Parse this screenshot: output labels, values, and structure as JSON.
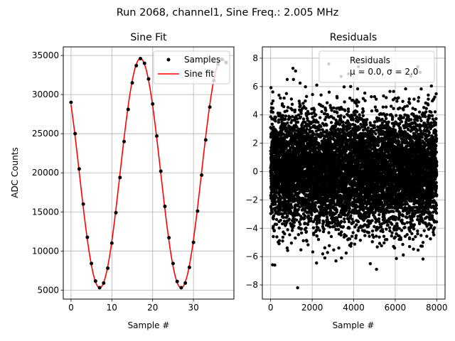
{
  "figure": {
    "title": "Run 2068, channel1, Sine Freq.: 2.005 MHz"
  },
  "chart_data": [
    {
      "type": "line",
      "title": "Sine Fit",
      "xlabel": "Sample #",
      "ylabel": "ADC Counts",
      "xlim": [
        -1.9,
        39.9
      ],
      "ylim": [
        3850,
        36100
      ],
      "xticks": [
        0,
        10,
        20,
        30
      ],
      "yticks": [
        5000,
        10000,
        15000,
        20000,
        25000,
        30000,
        35000
      ],
      "grid": true,
      "legend": {
        "position": "top-right",
        "entries": [
          "Samples",
          "Sine fit"
        ]
      },
      "series": [
        {
          "name": "Samples",
          "style": "markers",
          "color": "#000000",
          "x": [
            0,
            1,
            2,
            3,
            4,
            5,
            6,
            7,
            8,
            9,
            10,
            11,
            12,
            13,
            14,
            15,
            16,
            17,
            18,
            19,
            20,
            21,
            22,
            23,
            24,
            25,
            26,
            27,
            28,
            29,
            30,
            31,
            32,
            33,
            34,
            35,
            36,
            37,
            38
          ],
          "y": [
            29000,
            25000,
            20500,
            16000,
            11750,
            8400,
            6150,
            5300,
            5900,
            7800,
            11000,
            14900,
            19400,
            24000,
            28100,
            31500,
            33700,
            34600,
            34000,
            32000,
            28800,
            24700,
            20200,
            15700,
            11700,
            8400,
            6100,
            5300,
            5900,
            7900,
            11100,
            15100,
            19700,
            24200,
            28400,
            31800,
            33900,
            34500,
            34100
          ]
        },
        {
          "name": "Sine fit",
          "style": "line",
          "color": "#ff0000",
          "model": {
            "offset": 19950,
            "amplitude": 14660,
            "period": 19.95,
            "peak_x": 17.0,
            "x_range": [
              0,
              38
            ]
          }
        }
      ]
    },
    {
      "type": "scatter",
      "title": "Residuals",
      "xlabel": "Sample #",
      "ylabel": "",
      "xlim": [
        -400,
        8400
      ],
      "ylim": [
        -9.0,
        8.8
      ],
      "xticks": [
        0,
        2000,
        4000,
        6000,
        8000
      ],
      "yticks": [
        -8,
        -6,
        -4,
        -2,
        0,
        2,
        4,
        6,
        8
      ],
      "grid": true,
      "legend": {
        "position": "top-right",
        "label": "Residuals",
        "stats": "μ = 0.0, σ = 2.0"
      },
      "series": [
        {
          "name": "Residuals",
          "color": "#000000",
          "distribution": {
            "count": 8000,
            "mean": 0.0,
            "std": 2.0,
            "x_range": [
              0,
              7999
            ]
          },
          "notable_points": [
            {
              "x": 1300,
              "y": -8.2
            },
            {
              "x": 2800,
              "y": 7.6
            },
            {
              "x": 1200,
              "y": 7.1
            },
            {
              "x": 5100,
              "y": -6.9
            },
            {
              "x": 7200,
              "y": 7.0
            },
            {
              "x": 800,
              "y": 6.5
            },
            {
              "x": 200,
              "y": -6.6
            },
            {
              "x": 4800,
              "y": -6.5
            }
          ]
        }
      ]
    }
  ]
}
